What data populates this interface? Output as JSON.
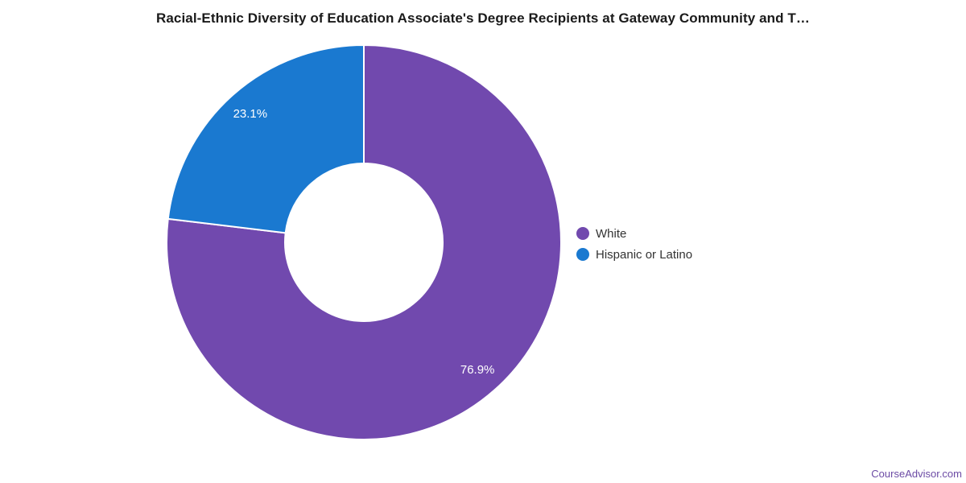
{
  "header": {
    "title": "Racial-Ethnic Diversity of Education Associate's Degree Recipients at Gateway Community and T…"
  },
  "chart_data": {
    "type": "pie",
    "subtype": "donut",
    "title": "Racial-Ethnic Diversity of Education Associate's Degree Recipients at Gateway Community and T…",
    "series": [
      {
        "name": "White",
        "value": 76.9,
        "data_label": "76.9%",
        "color": "#7149ae"
      },
      {
        "name": "Hispanic or Latino",
        "value": 23.1,
        "data_label": "23.1%",
        "color": "#1a79d0"
      }
    ],
    "start_angle_deg": 0,
    "direction": "clockwise",
    "legend_position": "right",
    "data_label_color": "#ffffff",
    "slice_border_color": "#ffffff",
    "background_color": "#ffffff"
  },
  "footer": {
    "brand": "CourseAdvisor.com",
    "color": "#6c4ba5"
  }
}
